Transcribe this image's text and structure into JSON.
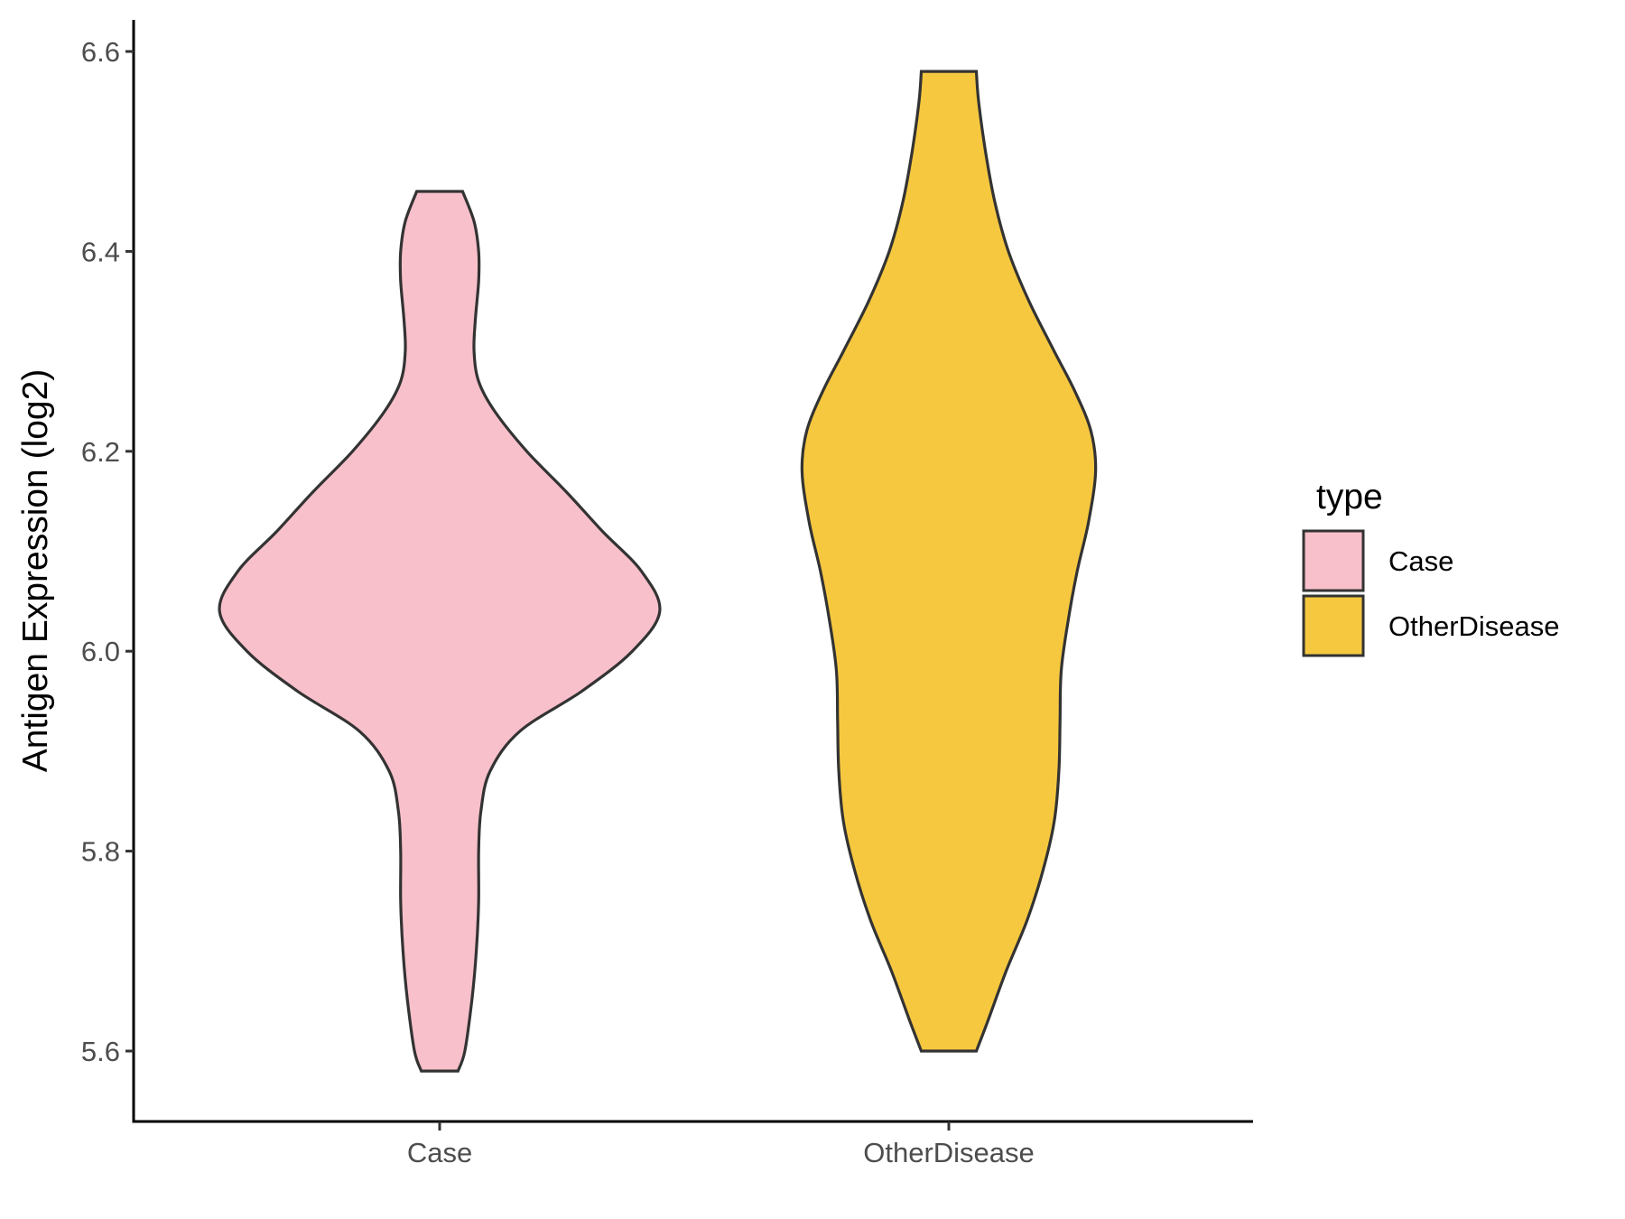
{
  "chart_data": {
    "type": "violin",
    "title": "",
    "xlabel": "",
    "ylabel": "Antigen Expression (log2)",
    "ylim": [
      5.53,
      6.63
    ],
    "yticks": [
      "5.6",
      "5.8",
      "6.0",
      "6.2",
      "6.4",
      "6.6"
    ],
    "categories": [
      "Case",
      "OtherDisease"
    ],
    "legend": {
      "title": "type",
      "position": "right",
      "entries": [
        {
          "label": "Case",
          "color": "#F8C0CB"
        },
        {
          "label": "OtherDisease",
          "color": "#F6C840"
        }
      ]
    },
    "grid": false,
    "series": [
      {
        "name": "Case",
        "color": "#F8C0CB",
        "min": 5.58,
        "max": 6.46,
        "profile": [
          [
            5.58,
            0.08
          ],
          [
            5.6,
            0.11
          ],
          [
            5.65,
            0.14
          ],
          [
            5.7,
            0.16
          ],
          [
            5.75,
            0.17
          ],
          [
            5.8,
            0.17
          ],
          [
            5.84,
            0.18
          ],
          [
            5.88,
            0.22
          ],
          [
            5.92,
            0.35
          ],
          [
            5.96,
            0.62
          ],
          [
            6.0,
            0.84
          ],
          [
            6.04,
            0.96
          ],
          [
            6.08,
            0.88
          ],
          [
            6.12,
            0.71
          ],
          [
            6.16,
            0.55
          ],
          [
            6.2,
            0.38
          ],
          [
            6.24,
            0.24
          ],
          [
            6.27,
            0.17
          ],
          [
            6.3,
            0.15
          ],
          [
            6.33,
            0.155
          ],
          [
            6.37,
            0.17
          ],
          [
            6.4,
            0.17
          ],
          [
            6.43,
            0.15
          ],
          [
            6.46,
            0.1
          ]
        ]
      },
      {
        "name": "OtherDisease",
        "color": "#F6C840",
        "min": 5.6,
        "max": 6.58,
        "profile": [
          [
            5.6,
            0.12
          ],
          [
            5.63,
            0.17
          ],
          [
            5.68,
            0.25
          ],
          [
            5.73,
            0.34
          ],
          [
            5.78,
            0.41
          ],
          [
            5.83,
            0.46
          ],
          [
            5.88,
            0.48
          ],
          [
            5.93,
            0.485
          ],
          [
            5.98,
            0.49
          ],
          [
            6.03,
            0.52
          ],
          [
            6.08,
            0.56
          ],
          [
            6.13,
            0.61
          ],
          [
            6.18,
            0.64
          ],
          [
            6.22,
            0.62
          ],
          [
            6.26,
            0.55
          ],
          [
            6.3,
            0.46
          ],
          [
            6.35,
            0.35
          ],
          [
            6.4,
            0.26
          ],
          [
            6.45,
            0.2
          ],
          [
            6.5,
            0.16
          ],
          [
            6.55,
            0.13
          ],
          [
            6.58,
            0.12
          ]
        ]
      }
    ]
  }
}
